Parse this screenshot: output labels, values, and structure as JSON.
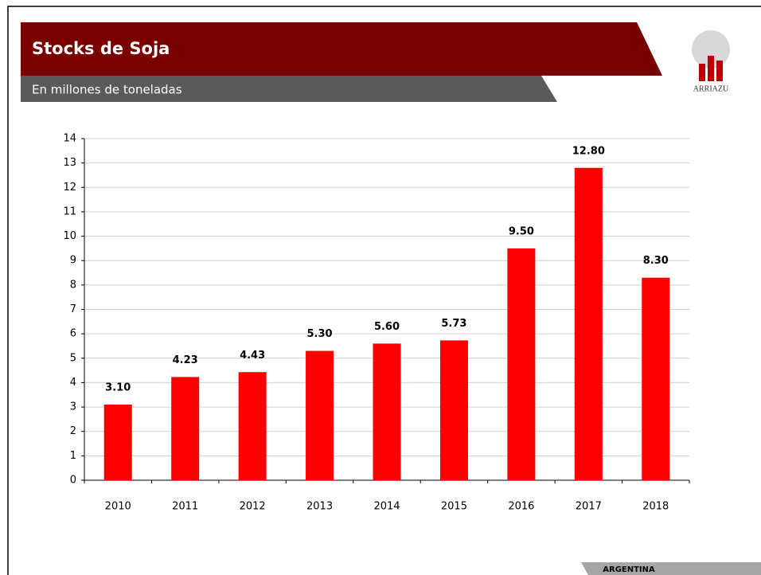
{
  "header": {
    "title": "Stocks de Soja",
    "subtitle": "En millones de toneladas",
    "logo": "ARRIAZU"
  },
  "footer": "ARGENTINA",
  "chart_data": {
    "type": "bar",
    "categories": [
      "2010",
      "2011",
      "2012",
      "2013",
      "2014",
      "2015",
      "2016",
      "2017",
      "2018"
    ],
    "values": [
      3.1,
      4.23,
      4.43,
      5.3,
      5.6,
      5.73,
      9.5,
      12.8,
      8.3
    ],
    "value_labels": [
      "3.10",
      "4.23",
      "4.43",
      "5.30",
      "5.60",
      "5.73",
      "9.50",
      "12.80",
      "8.30"
    ],
    "color": "#ff0000",
    "ylim": [
      0,
      14
    ],
    "yticks": [
      0,
      1,
      2,
      3,
      4,
      5,
      6,
      7,
      8,
      9,
      10,
      11,
      12,
      13,
      14
    ],
    "grid": true
  }
}
